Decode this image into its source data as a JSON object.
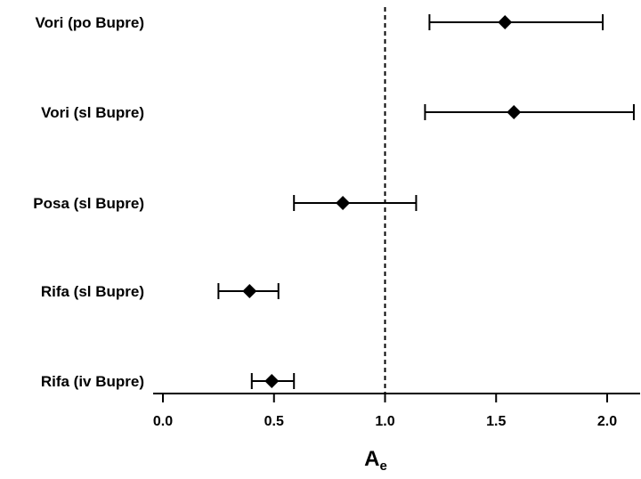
{
  "chart_data": {
    "type": "forest",
    "categories": [
      "Vori (po Bupre)",
      "Vori (sl Bupre)",
      "Posa (sl Bupre)",
      "Rifa (sl Bupre)",
      "Rifa (iv Bupre)"
    ],
    "estimates": [
      1.54,
      1.58,
      0.81,
      0.39,
      0.49
    ],
    "ci_low": [
      1.2,
      1.18,
      0.59,
      0.25,
      0.4
    ],
    "ci_high": [
      1.98,
      2.12,
      1.14,
      0.52,
      0.59
    ],
    "reference_line": 1.0,
    "x_ticks": [
      "0.0",
      "0.5",
      "1.0",
      "1.5",
      "2.0"
    ],
    "xlim": [
      -0.04,
      2.15
    ],
    "xlabel": "A",
    "xlabel_subscript": "e",
    "marker": "diamond",
    "color": "#000000"
  }
}
